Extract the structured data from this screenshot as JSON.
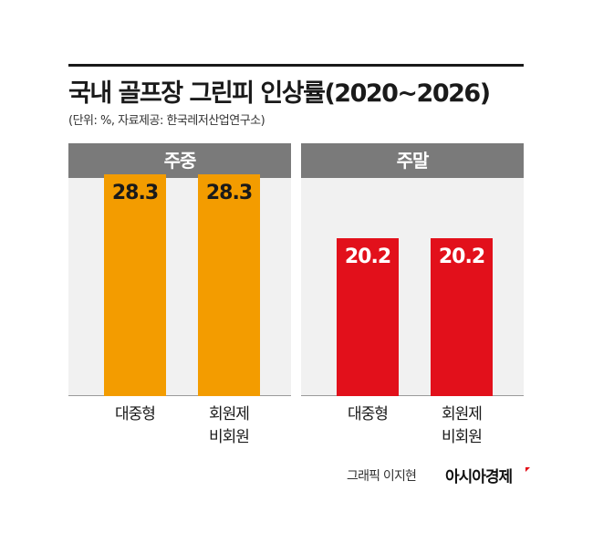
{
  "header": {
    "title": "국내 골프장 그린피 인상률(2020~2026)",
    "subtitle": "(단위: %, 자료제공: 한국레저산업연구소)"
  },
  "chart_data": {
    "type": "bar",
    "title": "국내 골프장 그린피 인상률(2020~2026)",
    "unit": "%",
    "ylim": [
      0,
      35
    ],
    "grid": false,
    "panels": [
      {
        "name": "주중",
        "color": "#f39c00",
        "text_color": "#1a1a1a",
        "categories": [
          "대중형",
          "회원제 비회원"
        ],
        "values": [
          28.3,
          28.3
        ]
      },
      {
        "name": "주말",
        "color": "#e2101b",
        "text_color": "#ffffff",
        "categories": [
          "대중형",
          "회원제 비회원"
        ],
        "values": [
          20.2,
          20.2
        ]
      }
    ]
  },
  "footer": {
    "credit": "그래픽 이지현",
    "brand": "아시아경제",
    "brand_color": "#e30613"
  }
}
